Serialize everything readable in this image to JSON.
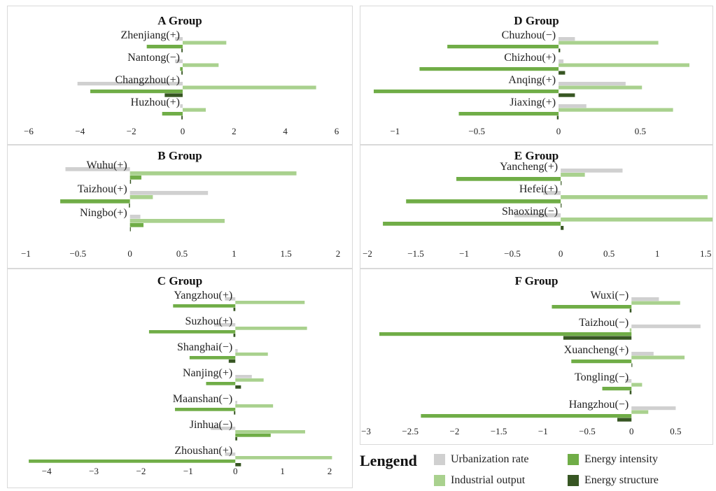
{
  "colors": {
    "urbanization": "#d0d0d0",
    "industrial": "#a9d18e",
    "intensity": "#70ad47",
    "structure": "#375623"
  },
  "legend": {
    "title": "Lengend",
    "items": [
      {
        "key": "urbanization",
        "label": "Urbanization rate"
      },
      {
        "key": "intensity",
        "label": "Energy intensity"
      },
      {
        "key": "industrial",
        "label": "Industrial output"
      },
      {
        "key": "structure",
        "label": "Energy structure"
      }
    ]
  },
  "chart_data": [
    {
      "type": "bar",
      "orientation": "horizontal",
      "title": "A Group",
      "xlim": [
        -6,
        6
      ],
      "ticks": [
        -6,
        -4,
        -2,
        0,
        2,
        4,
        6
      ],
      "tick_labels": [
        "−6",
        "−4",
        "−2",
        "0",
        "2",
        "4",
        "6"
      ],
      "categories": [
        "Zhenjiang(+)",
        "Nantong(−)",
        "Changzhou(+)",
        "Huzhou(+)"
      ],
      "series": [
        {
          "key": "urbanization",
          "name": "Urbanization rate",
          "values": [
            -0.3,
            -0.3,
            -4.1,
            -0.1
          ]
        },
        {
          "key": "industrial",
          "name": "Industrial output",
          "values": [
            1.7,
            1.4,
            5.2,
            0.9
          ]
        },
        {
          "key": "intensity",
          "name": "Energy intensity",
          "values": [
            -1.4,
            -0.1,
            -3.6,
            -0.8
          ]
        },
        {
          "key": "structure",
          "name": "Energy structure",
          "values": [
            -0.05,
            -0.05,
            -0.7,
            -0.05
          ]
        }
      ]
    },
    {
      "type": "bar",
      "orientation": "horizontal",
      "title": "D Group",
      "xlim": [
        -1.1,
        0.8
      ],
      "ticks": [
        -1,
        -0.5,
        0,
        0.5
      ],
      "tick_labels": [
        "−1",
        "−0.5",
        "0",
        "0.5"
      ],
      "categories": [
        "Chuzhou(−)",
        "Chizhou(+)",
        "Anqing(+)",
        "Jiaxing(+)"
      ],
      "series": [
        {
          "key": "urbanization",
          "name": "Urbanization rate",
          "values": [
            0.1,
            0.03,
            0.41,
            0.17
          ]
        },
        {
          "key": "industrial",
          "name": "Industrial output",
          "values": [
            0.61,
            0.8,
            0.51,
            0.7
          ]
        },
        {
          "key": "intensity",
          "name": "Energy intensity",
          "values": [
            -0.68,
            -0.85,
            -1.13,
            -0.61
          ]
        },
        {
          "key": "structure",
          "name": "Energy structure",
          "values": [
            0.01,
            0.04,
            0.1,
            -0.01
          ]
        }
      ]
    },
    {
      "type": "bar",
      "orientation": "horizontal",
      "title": "B Group",
      "xlim": [
        -1,
        2
      ],
      "ticks": [
        -1,
        -0.5,
        0,
        0.5,
        1,
        1.5,
        2
      ],
      "tick_labels": [
        "−1",
        "−0.5",
        "0",
        "0.5",
        "1",
        "1.5",
        "2"
      ],
      "categories": [
        "Wuhu(+)",
        "Taizhou(+)",
        "Ningbo(+)"
      ],
      "series": [
        {
          "key": "urbanization",
          "name": "Urbanization rate",
          "values": [
            -0.62,
            0.75,
            0.1
          ]
        },
        {
          "key": "industrial",
          "name": "Industrial output",
          "values": [
            1.6,
            0.22,
            0.91
          ]
        },
        {
          "key": "intensity",
          "name": "Energy intensity",
          "values": [
            0.11,
            -0.67,
            0.13
          ]
        },
        {
          "key": "structure",
          "name": "Energy structure",
          "values": [
            0.01,
            -0.01,
            0.0
          ]
        }
      ]
    },
    {
      "type": "bar",
      "orientation": "horizontal",
      "title": "E Group",
      "xlim": [
        -2,
        1.6
      ],
      "ticks": [
        -2,
        -1.5,
        -1,
        -0.5,
        0,
        0.5,
        1,
        1.5
      ],
      "tick_labels": [
        "−2",
        "−1.5",
        "−1",
        "−0.5",
        "0",
        "0.5",
        "1",
        "1.5"
      ],
      "categories": [
        "Yancheng(+)",
        "Hefei(+)",
        "Shaoxing(−)"
      ],
      "series": [
        {
          "key": "urbanization",
          "name": "Urbanization rate",
          "values": [
            0.64,
            -0.18,
            -0.48
          ]
        },
        {
          "key": "industrial",
          "name": "Industrial output",
          "values": [
            0.25,
            1.52,
            1.62
          ]
        },
        {
          "key": "intensity",
          "name": "Energy intensity",
          "values": [
            -1.08,
            -1.6,
            -1.84
          ]
        },
        {
          "key": "structure",
          "name": "Energy structure",
          "values": [
            0.0,
            0.0,
            0.03
          ]
        }
      ]
    },
    {
      "type": "bar",
      "orientation": "horizontal",
      "title": "C Group",
      "xlim": [
        -4.5,
        2
      ],
      "ticks": [
        -4,
        -3,
        -2,
        -1,
        0,
        1,
        2
      ],
      "tick_labels": [
        "−4",
        "−3",
        "−2",
        "−1",
        "0",
        "1",
        "2"
      ],
      "categories": [
        "Yangzhou(+)",
        "Suzhou(+)",
        "Shanghai(−)",
        "Nanjing(+)",
        "Maanshan(−)",
        "Jinhua(−)",
        "Zhoushan(+)"
      ],
      "series": [
        {
          "key": "urbanization",
          "name": "Urbanization rate",
          "values": [
            -0.22,
            -0.45,
            0.05,
            0.35,
            0.04,
            -0.52,
            -0.22
          ]
        },
        {
          "key": "industrial",
          "name": "Industrial output",
          "values": [
            1.47,
            1.52,
            0.69,
            0.6,
            0.8,
            1.48,
            2.05
          ]
        },
        {
          "key": "intensity",
          "name": "Energy intensity",
          "values": [
            -1.32,
            -1.83,
            -0.97,
            -0.62,
            -1.28,
            0.75,
            -4.38
          ]
        },
        {
          "key": "structure",
          "name": "Energy structure",
          "values": [
            -0.04,
            -0.04,
            -0.14,
            0.12,
            -0.03,
            0.04,
            0.12
          ]
        }
      ]
    },
    {
      "type": "bar",
      "orientation": "horizontal",
      "title": "F Group",
      "xlim": [
        -3,
        0.9
      ],
      "ticks": [
        -3,
        -2.5,
        -2,
        -1.5,
        -1,
        -0.5,
        0,
        0.5
      ],
      "tick_labels": [
        "−3",
        "−2.5",
        "−2",
        "−1.5",
        "−1",
        "−0.5",
        "0",
        "0.5"
      ],
      "categories": [
        "Wuxi(−)",
        "Taizhou(−)",
        "Xuancheng(+)",
        "Tongling(−)",
        "Hangzhou(−)"
      ],
      "series": [
        {
          "key": "urbanization",
          "name": "Urbanization rate",
          "values": [
            0.31,
            0.78,
            0.25,
            -0.07,
            0.5
          ]
        },
        {
          "key": "industrial",
          "name": "Industrial output",
          "values": [
            0.55,
            -0.02,
            0.6,
            0.12,
            0.19
          ]
        },
        {
          "key": "intensity",
          "name": "Energy intensity",
          "values": [
            -0.9,
            -2.85,
            -0.68,
            -0.33,
            -2.38
          ]
        },
        {
          "key": "structure",
          "name": "Energy structure",
          "values": [
            -0.02,
            -0.77,
            0.0,
            -0.02,
            -0.16
          ]
        }
      ]
    }
  ]
}
